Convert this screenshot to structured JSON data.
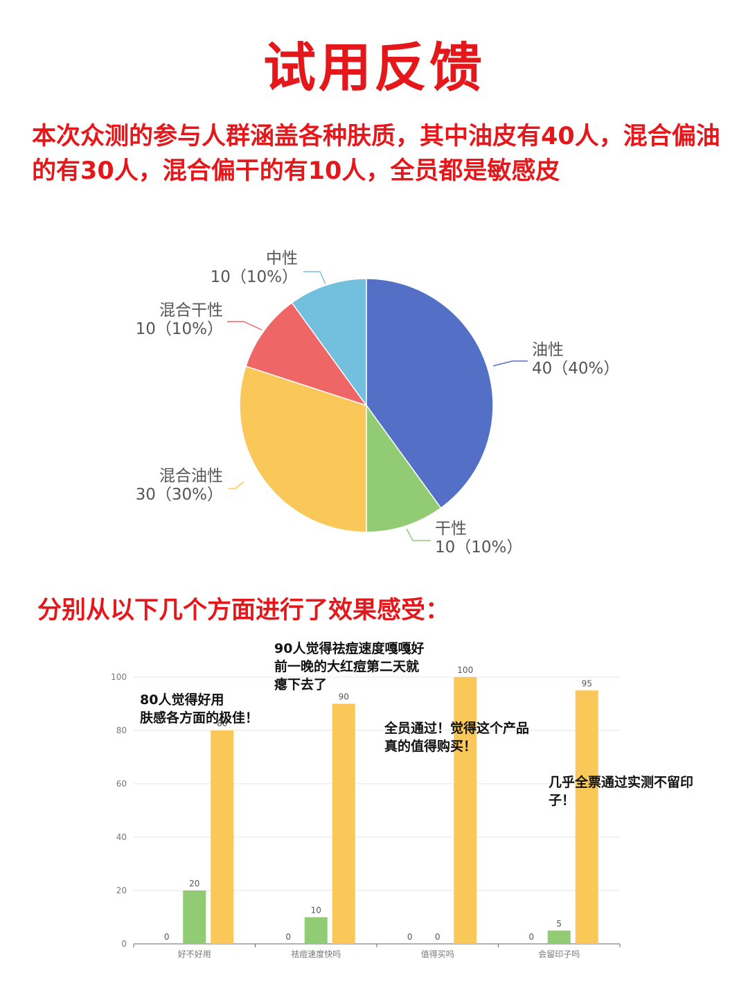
{
  "header": {
    "title": "试用反馈",
    "intro": "本次众测的参与人群涵盖各种肤质，其中油皮有40人，混合偏油的有30人，混合偏干的有10人，全员都是敏感皮",
    "section_heading": "分别从以下几个方面进行了效果感受："
  },
  "annotations": {
    "a1": "80人觉得好用\n肤感各方面的极佳！",
    "a2": "90人觉得祛痘速度嘎嘎好\n前一晚的大红痘第二天就\n瘪下去了",
    "a3": "全员通过！觉得这个产品\n真的值得购买！",
    "a4": "几乎全票通过实测不留印\n子！"
  },
  "chart_data": [
    {
      "type": "pie",
      "slices": [
        {
          "name": "油性",
          "value": 40,
          "percent": "40%",
          "color": "#5470c6"
        },
        {
          "name": "干性",
          "value": 10,
          "percent": "10%",
          "color": "#91cc75"
        },
        {
          "name": "混合油性",
          "value": 30,
          "percent": "30%",
          "color": "#fac858"
        },
        {
          "name": "混合干性",
          "value": 10,
          "percent": "10%",
          "color": "#ee6666"
        },
        {
          "name": "中性",
          "value": 10,
          "percent": "10%",
          "color": "#73c0de"
        }
      ]
    },
    {
      "type": "bar",
      "categories": [
        "好不好用",
        "祛痘速度快吗",
        "值得买吗",
        "会留印子吗"
      ],
      "series": [
        {
          "values": [
            0,
            0,
            0,
            0
          ],
          "color": "#5470c6"
        },
        {
          "values": [
            20,
            10,
            0,
            5
          ],
          "color": "#91cc75"
        },
        {
          "values": [
            80,
            90,
            100,
            95
          ],
          "color": "#fac858"
        }
      ],
      "ylim": [
        0,
        100
      ],
      "yticks": [
        0,
        20,
        40,
        60,
        80,
        100
      ],
      "grid": true
    }
  ]
}
